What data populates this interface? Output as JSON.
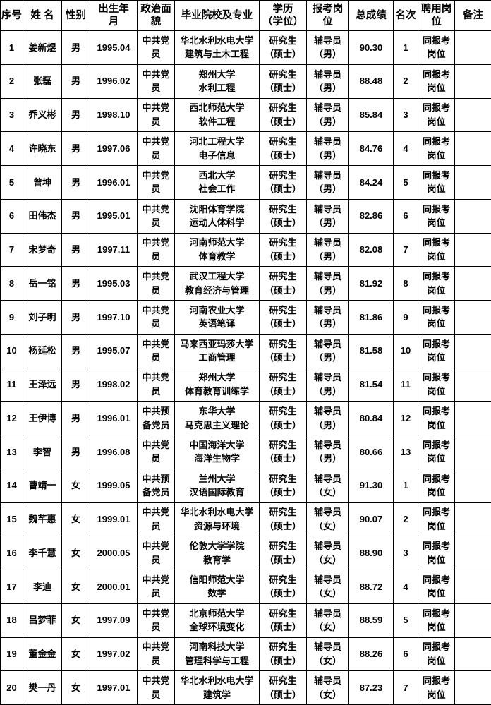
{
  "table": {
    "columns": [
      {
        "id": "index",
        "label": "序号"
      },
      {
        "id": "name",
        "label": "姓 名"
      },
      {
        "id": "gender",
        "label": "性别"
      },
      {
        "id": "birth-date",
        "label": "出生年\n月"
      },
      {
        "id": "political",
        "label": "政治面\n貌"
      },
      {
        "id": "school-major",
        "label": "毕业院校及专业"
      },
      {
        "id": "degree",
        "label": "学历\n（学位）"
      },
      {
        "id": "applied-post",
        "label": "报考岗\n位"
      },
      {
        "id": "total-score",
        "label": "总成绩"
      },
      {
        "id": "rank",
        "label": "名次"
      },
      {
        "id": "hired-post",
        "label": "聘用岗\n位"
      },
      {
        "id": "notes",
        "label": "备注"
      }
    ],
    "rows": [
      [
        "1",
        "姜新煜",
        "男",
        "1995.04",
        "中共党\n员",
        "华北水利水电大学\n建筑与土木工程",
        "研究生\n（硕士）",
        "辅导员\n（男）",
        "90.30",
        "1",
        "同报考\n岗位",
        ""
      ],
      [
        "2",
        "张磊",
        "男",
        "1996.02",
        "中共党\n员",
        "郑州大学\n水利工程",
        "研究生\n（硕士）",
        "辅导员\n（男）",
        "88.48",
        "2",
        "同报考\n岗位",
        ""
      ],
      [
        "3",
        "乔义彬",
        "男",
        "1998.10",
        "中共党\n员",
        "西北师范大学\n软件工程",
        "研究生\n（硕士）",
        "辅导员\n（男）",
        "85.84",
        "3",
        "同报考\n岗位",
        ""
      ],
      [
        "4",
        "许晓东",
        "男",
        "1997.06",
        "中共党\n员",
        "河北工程大学\n电子信息",
        "研究生\n（硕士）",
        "辅导员\n（男）",
        "84.76",
        "4",
        "同报考\n岗位",
        ""
      ],
      [
        "5",
        "曾坤",
        "男",
        "1996.01",
        "中共党\n员",
        "西北大学\n社会工作",
        "研究生\n（硕士）",
        "辅导员\n（男）",
        "84.24",
        "5",
        "同报考\n岗位",
        ""
      ],
      [
        "6",
        "田伟杰",
        "男",
        "1995.01",
        "中共党\n员",
        "沈阳体育学院\n运动人体科学",
        "研究生\n（硕士）",
        "辅导员\n（男）",
        "82.86",
        "6",
        "同报考\n岗位",
        ""
      ],
      [
        "7",
        "宋梦奇",
        "男",
        "1997.11",
        "中共党\n员",
        "河南师范大学\n体育教学",
        "研究生\n（硕士）",
        "辅导员\n（男）",
        "82.08",
        "7",
        "同报考\n岗位",
        ""
      ],
      [
        "8",
        "岳一铭",
        "男",
        "1995.03",
        "中共党\n员",
        "武汉工程大学\n教育经济与管理",
        "研究生\n（硕士）",
        "辅导员\n（男）",
        "81.92",
        "8",
        "同报考\n岗位",
        ""
      ],
      [
        "9",
        "刘子明",
        "男",
        "1997.10",
        "中共党\n员",
        "河南农业大学\n英语笔译",
        "研究生\n（硕士）",
        "辅导员\n（男）",
        "81.86",
        "9",
        "同报考\n岗位",
        ""
      ],
      [
        "10",
        "杨延松",
        "男",
        "1995.07",
        "中共党\n员",
        "马来西亚玛莎大学\n工商管理",
        "研究生\n（硕士）",
        "辅导员\n（男）",
        "81.58",
        "10",
        "同报考\n岗位",
        ""
      ],
      [
        "11",
        "王泽远",
        "男",
        "1998.02",
        "中共党\n员",
        "郑州大学\n体育教育训练学",
        "研究生\n（硕士）",
        "辅导员\n（男）",
        "81.54",
        "11",
        "同报考\n岗位",
        ""
      ],
      [
        "12",
        "王伊博",
        "男",
        "1996.01",
        "中共预\n备党员",
        "东华大学\n马克思主义理论",
        "研究生\n（硕士）",
        "辅导员\n（男）",
        "80.84",
        "12",
        "同报考\n岗位",
        ""
      ],
      [
        "13",
        "李智",
        "男",
        "1996.08",
        "中共党\n员",
        "中国海洋大学\n海洋生物学",
        "研究生\n（硕士）",
        "辅导员\n（男）",
        "80.66",
        "13",
        "同报考\n岗位",
        ""
      ],
      [
        "14",
        "曹靖一",
        "女",
        "1999.05",
        "中共预\n备党员",
        "兰州大学\n汉语国际教育",
        "研究生\n（硕士）",
        "辅导员\n（女）",
        "91.30",
        "1",
        "同报考\n岗位",
        ""
      ],
      [
        "15",
        "魏芊惠",
        "女",
        "1999.01",
        "中共党\n员",
        "华北水利水电大学\n资源与环境",
        "研究生\n（硕士）",
        "辅导员\n（女）",
        "90.07",
        "2",
        "同报考\n岗位",
        ""
      ],
      [
        "16",
        "李千慧",
        "女",
        "2000.05",
        "中共党\n员",
        "伦敦大学学院\n教育学",
        "研究生\n（硕士）",
        "辅导员\n（女）",
        "88.90",
        "3",
        "同报考\n岗位",
        ""
      ],
      [
        "17",
        "李迪",
        "女",
        "2000.01",
        "中共党\n员",
        "信阳师范大学\n数学",
        "研究生\n（硕士）",
        "辅导员\n（女）",
        "88.72",
        "4",
        "同报考\n岗位",
        ""
      ],
      [
        "18",
        "吕梦菲",
        "女",
        "1997.09",
        "中共党\n员",
        "北京师范大学\n全球环境变化",
        "研究生\n（硕士）",
        "辅导员\n（女）",
        "88.59",
        "5",
        "同报考\n岗位",
        ""
      ],
      [
        "19",
        "董金金",
        "女",
        "1997.02",
        "中共党\n员",
        "河南科技大学\n管理科学与工程",
        "研究生\n（硕士）",
        "辅导员\n（女）",
        "88.26",
        "6",
        "同报考\n岗位",
        ""
      ],
      [
        "20",
        "樊一丹",
        "女",
        "1997.01",
        "中共党\n员",
        "华北水利水电大学\n建筑学",
        "研究生\n（硕士）",
        "辅导员\n（女）",
        "87.23",
        "7",
        "同报考\n岗位",
        ""
      ]
    ],
    "text_color": "#000000",
    "border_color": "#000000",
    "background_color": "#ffffff"
  }
}
